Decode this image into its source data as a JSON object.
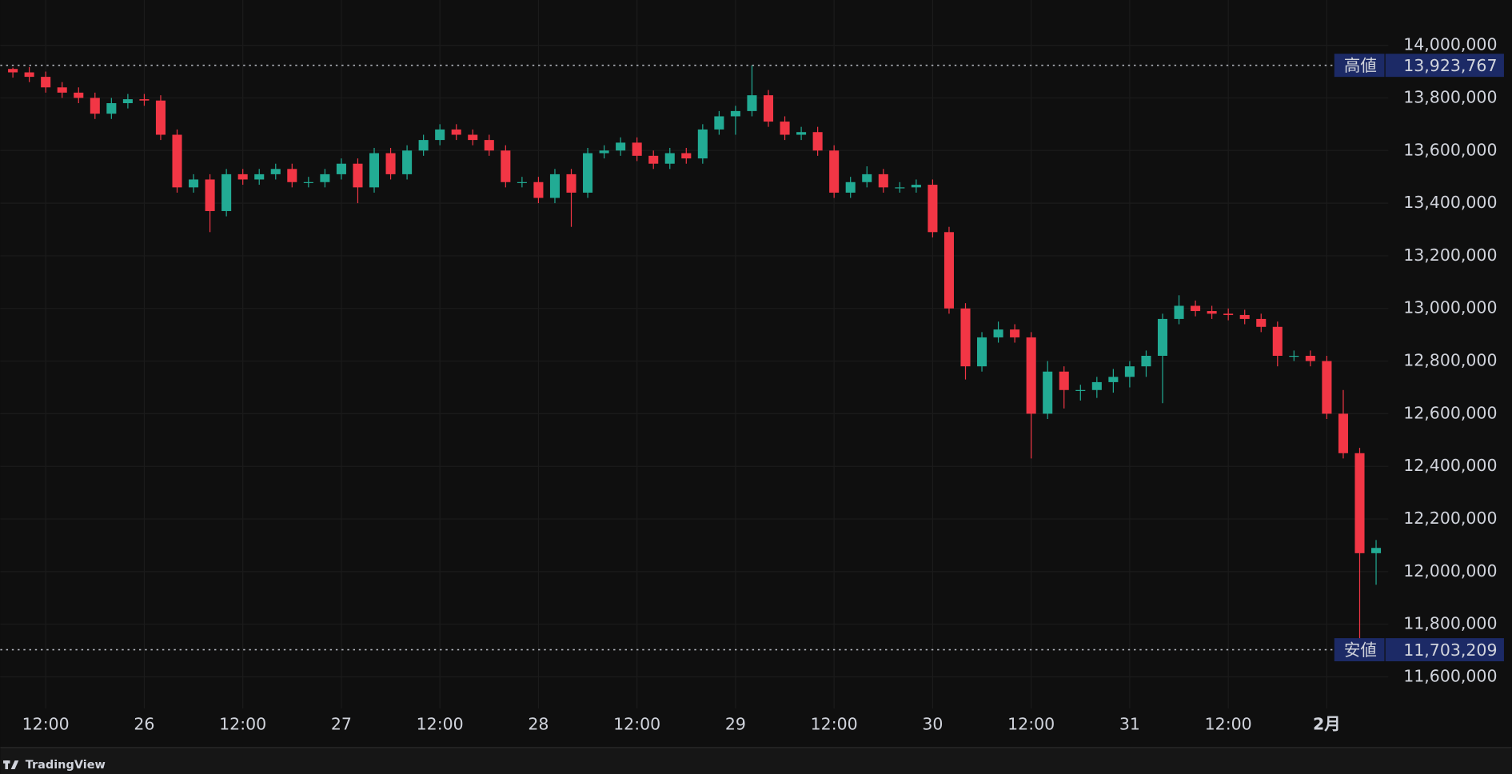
{
  "chart_data": {
    "type": "candlestick",
    "categories": [
      null,
      null,
      "12:00",
      null,
      null,
      null,
      null,
      null,
      "26",
      null,
      null,
      null,
      null,
      null,
      "12:00",
      null,
      null,
      null,
      null,
      null,
      "27",
      null,
      null,
      null,
      null,
      null,
      "12:00",
      null,
      null,
      null,
      null,
      null,
      "28",
      null,
      null,
      null,
      null,
      null,
      "12:00",
      null,
      null,
      null,
      null,
      null,
      "29",
      null,
      null,
      null,
      null,
      null,
      "12:00",
      null,
      null,
      null,
      null,
      null,
      "30",
      null,
      null,
      null,
      null,
      null,
      "12:00",
      null,
      null,
      null,
      null,
      null,
      "31",
      null,
      null,
      null,
      null,
      null,
      "12:00",
      null,
      null,
      null,
      null,
      null,
      "2月",
      null,
      null,
      null
    ],
    "open": [
      13910000,
      13897000,
      13880000,
      13840000,
      13820000,
      13800000,
      13740000,
      13780000,
      13795000,
      13790000,
      13660000,
      13460000,
      13490000,
      13370000,
      13510000,
      13490000,
      13510000,
      13530000,
      13480000,
      13480000,
      13510000,
      13550000,
      13460000,
      13590000,
      13510000,
      13600000,
      13640000,
      13680000,
      13660000,
      13640000,
      13600000,
      13480000,
      13480000,
      13420000,
      13510000,
      13440000,
      13590000,
      13600000,
      13630000,
      13580000,
      13550000,
      13590000,
      13570000,
      13680000,
      13730000,
      13750000,
      13810000,
      13710000,
      13660000,
      13670000,
      13600000,
      13440000,
      13480000,
      13510000,
      13460000,
      13460000,
      13470000,
      13290000,
      13000000,
      12780000,
      12890000,
      12920000,
      12890000,
      12600000,
      12760000,
      12690000,
      12690000,
      12720000,
      12740000,
      12780000,
      12820000,
      12960000,
      13010000,
      12990000,
      12980000,
      12975000,
      12960000,
      12930000,
      12820000,
      12820000,
      12800000,
      12600000,
      12450000,
      12070000
    ],
    "high": [
      13915000,
      13917000,
      13900000,
      13860000,
      13840000,
      13820000,
      13800000,
      13815000,
      13815000,
      13810000,
      13680000,
      13510000,
      13510000,
      13530000,
      13530000,
      13530000,
      13550000,
      13550000,
      13500000,
      13530000,
      13570000,
      13570000,
      13610000,
      13610000,
      13620000,
      13660000,
      13700000,
      13700000,
      13680000,
      13660000,
      13620000,
      13500000,
      13500000,
      13530000,
      13530000,
      13610000,
      13620000,
      13650000,
      13650000,
      13600000,
      13610000,
      13610000,
      13700000,
      13750000,
      13770000,
      13923767,
      13830000,
      13730000,
      13690000,
      13690000,
      13620000,
      13500000,
      13540000,
      13530000,
      13480000,
      13490000,
      13490000,
      13310000,
      13020000,
      12910000,
      12950000,
      12940000,
      12910000,
      12800000,
      12780000,
      12710000,
      12740000,
      12770000,
      12800000,
      12840000,
      12980000,
      13050000,
      13030000,
      13010000,
      13000000,
      12995000,
      12980000,
      12950000,
      12840000,
      12840000,
      12820000,
      12690000,
      12470000,
      12120000
    ],
    "low": [
      13877000,
      13860000,
      13820000,
      13800000,
      13780000,
      13720000,
      13720000,
      13760000,
      13770000,
      13640000,
      13440000,
      13440000,
      13290000,
      13350000,
      13470000,
      13470000,
      13490000,
      13460000,
      13460000,
      13460000,
      13490000,
      13400000,
      13440000,
      13490000,
      13490000,
      13580000,
      13620000,
      13640000,
      13620000,
      13580000,
      13460000,
      13460000,
      13400000,
      13400000,
      13310000,
      13420000,
      13570000,
      13580000,
      13560000,
      13530000,
      13530000,
      13550000,
      13550000,
      13660000,
      13660000,
      13730000,
      13690000,
      13640000,
      13640000,
      13580000,
      13420000,
      13420000,
      13460000,
      13440000,
      13440000,
      13440000,
      13270000,
      12980000,
      12730000,
      12760000,
      12870000,
      12870000,
      12430000,
      12580000,
      12620000,
      12650000,
      12660000,
      12680000,
      12700000,
      12740000,
      12640000,
      12940000,
      12970000,
      12960000,
      12955000,
      12940000,
      12910000,
      12780000,
      12800000,
      12780000,
      12580000,
      12430000,
      11703209,
      11950000
    ],
    "close": [
      13897000,
      13880000,
      13840000,
      13820000,
      13800000,
      13740000,
      13780000,
      13795000,
      13790000,
      13660000,
      13460000,
      13490000,
      13370000,
      13510000,
      13490000,
      13510000,
      13530000,
      13480000,
      13480000,
      13510000,
      13550000,
      13460000,
      13590000,
      13510000,
      13600000,
      13640000,
      13680000,
      13660000,
      13640000,
      13600000,
      13480000,
      13480000,
      13420000,
      13510000,
      13440000,
      13590000,
      13600000,
      13630000,
      13580000,
      13550000,
      13590000,
      13570000,
      13680000,
      13730000,
      13750000,
      13810000,
      13710000,
      13660000,
      13670000,
      13600000,
      13440000,
      13480000,
      13510000,
      13460000,
      13460000,
      13470000,
      13290000,
      13000000,
      12780000,
      12890000,
      12920000,
      12890000,
      12600000,
      12760000,
      12690000,
      12690000,
      12720000,
      12740000,
      12780000,
      12820000,
      12960000,
      13010000,
      12990000,
      12980000,
      12975000,
      12960000,
      12930000,
      12820000,
      12820000,
      12800000,
      12600000,
      12450000,
      12070000,
      12090000
    ],
    "up_color": "#22ab94",
    "down_color": "#f23645",
    "ylim": [
      11480000,
      14172000
    ],
    "yticks": [
      {
        "value": 11600000,
        "label": "11,600,000"
      },
      {
        "value": 11800000,
        "label": "11,800,000"
      },
      {
        "value": 12000000,
        "label": "12,000,000"
      },
      {
        "value": 12200000,
        "label": "12,200,000"
      },
      {
        "value": 12400000,
        "label": "12,400,000"
      },
      {
        "value": 12600000,
        "label": "12,600,000"
      },
      {
        "value": 12800000,
        "label": "12,800,000"
      },
      {
        "value": 13000000,
        "label": "13,000,000"
      },
      {
        "value": 13200000,
        "label": "13,200,000"
      },
      {
        "value": 13400000,
        "label": "13,400,000"
      },
      {
        "value": 13600000,
        "label": "13,600,000"
      },
      {
        "value": 13800000,
        "label": "13,800,000"
      },
      {
        "value": 14000000,
        "label": "14,000,000"
      }
    ],
    "grid": true,
    "annotations": [
      {
        "label": "高値",
        "value": 13923767,
        "value_label": "13,923,767"
      },
      {
        "label": "安値",
        "value": 11703209,
        "value_label": "11,703,209"
      }
    ],
    "brand": "TradingView"
  }
}
